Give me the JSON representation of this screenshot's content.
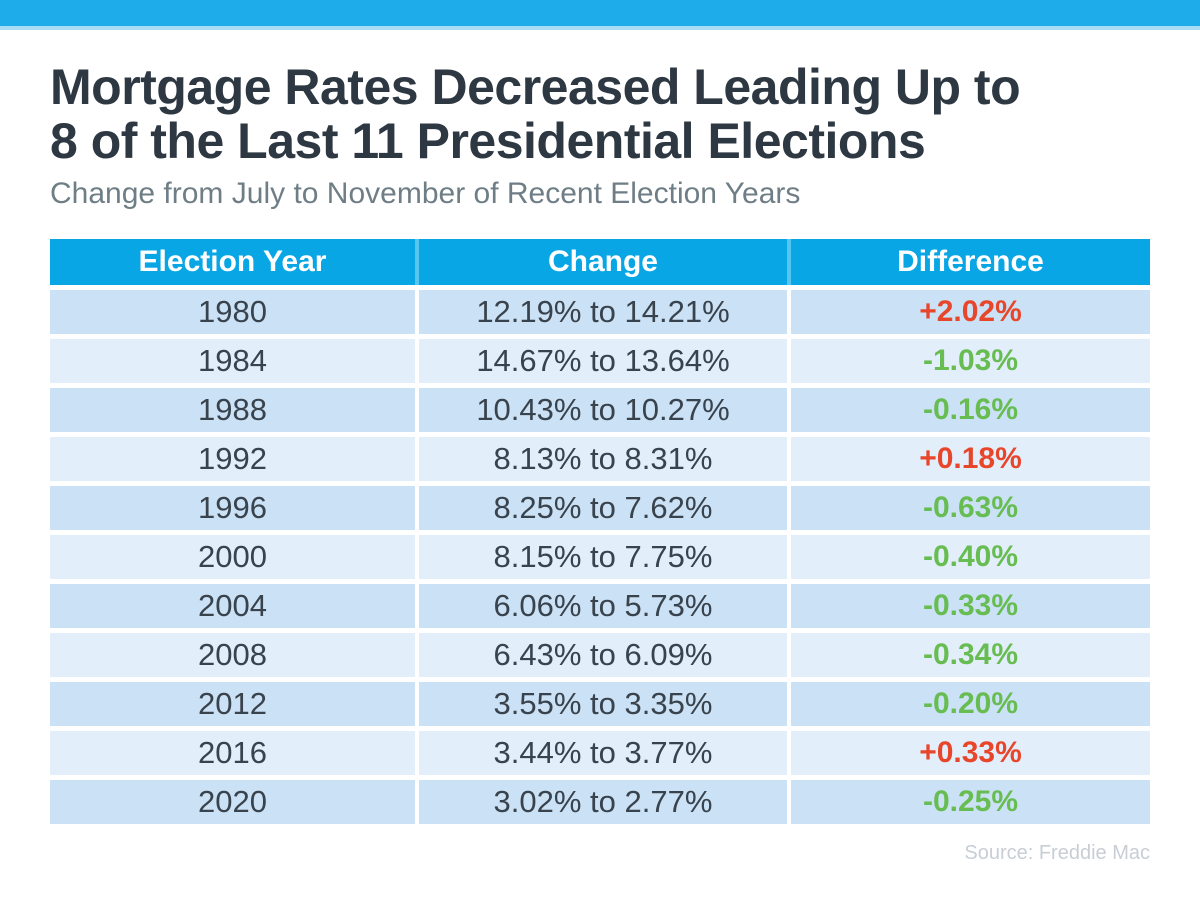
{
  "page": {
    "title_line1": "Mortgage Rates Decreased Leading Up to",
    "title_line2": "8 of the Last 11 Presidential Elections",
    "subtitle": "Change from July to November of Recent Election Years",
    "source": "Source: Freddie Mac"
  },
  "colors": {
    "top_bar": "#1FACEA",
    "header_bg": "#09A6E6",
    "row_dark": "#CBE1F5",
    "row_light": "#E3EEFB",
    "positive": "#E7462A",
    "negative": "#67BD51"
  },
  "chart_data": {
    "type": "table",
    "title": "Mortgage Rates Decreased Leading Up to 8 of the Last 11 Presidential Elections",
    "subtitle": "Change from July to November of Recent Election Years",
    "columns": [
      "Election Year",
      "Change",
      "Difference"
    ],
    "rows": [
      {
        "year": "1980",
        "change": "12.19% to 14.21%",
        "from": 12.19,
        "to": 14.21,
        "difference": "+2.02%",
        "difference_value": 2.02,
        "direction": "up"
      },
      {
        "year": "1984",
        "change": "14.67% to 13.64%",
        "from": 14.67,
        "to": 13.64,
        "difference": "-1.03%",
        "difference_value": -1.03,
        "direction": "down"
      },
      {
        "year": "1988",
        "change": "10.43% to 10.27%",
        "from": 10.43,
        "to": 10.27,
        "difference": "-0.16%",
        "difference_value": -0.16,
        "direction": "down"
      },
      {
        "year": "1992",
        "change": "8.13% to 8.31%",
        "from": 8.13,
        "to": 8.31,
        "difference": "+0.18%",
        "difference_value": 0.18,
        "direction": "up"
      },
      {
        "year": "1996",
        "change": "8.25% to 7.62%",
        "from": 8.25,
        "to": 7.62,
        "difference": "-0.63%",
        "difference_value": -0.63,
        "direction": "down"
      },
      {
        "year": "2000",
        "change": "8.15% to 7.75%",
        "from": 8.15,
        "to": 7.75,
        "difference": "-0.40%",
        "difference_value": -0.4,
        "direction": "down"
      },
      {
        "year": "2004",
        "change": "6.06% to 5.73%",
        "from": 6.06,
        "to": 5.73,
        "difference": "-0.33%",
        "difference_value": -0.33,
        "direction": "down"
      },
      {
        "year": "2008",
        "change": "6.43% to 6.09%",
        "from": 6.43,
        "to": 6.09,
        "difference": "-0.34%",
        "difference_value": -0.34,
        "direction": "down"
      },
      {
        "year": "2012",
        "change": "3.55% to 3.35%",
        "from": 3.55,
        "to": 3.35,
        "difference": "-0.20%",
        "difference_value": -0.2,
        "direction": "down"
      },
      {
        "year": "2016",
        "change": "3.44% to 3.77%",
        "from": 3.44,
        "to": 3.77,
        "difference": "+0.33%",
        "difference_value": 0.33,
        "direction": "up"
      },
      {
        "year": "2020",
        "change": "3.02% to 2.77%",
        "from": 3.02,
        "to": 2.77,
        "difference": "-0.25%",
        "difference_value": -0.25,
        "direction": "down"
      }
    ],
    "legend": "none",
    "grid": "off",
    "source": "Source: Freddie Mac"
  }
}
